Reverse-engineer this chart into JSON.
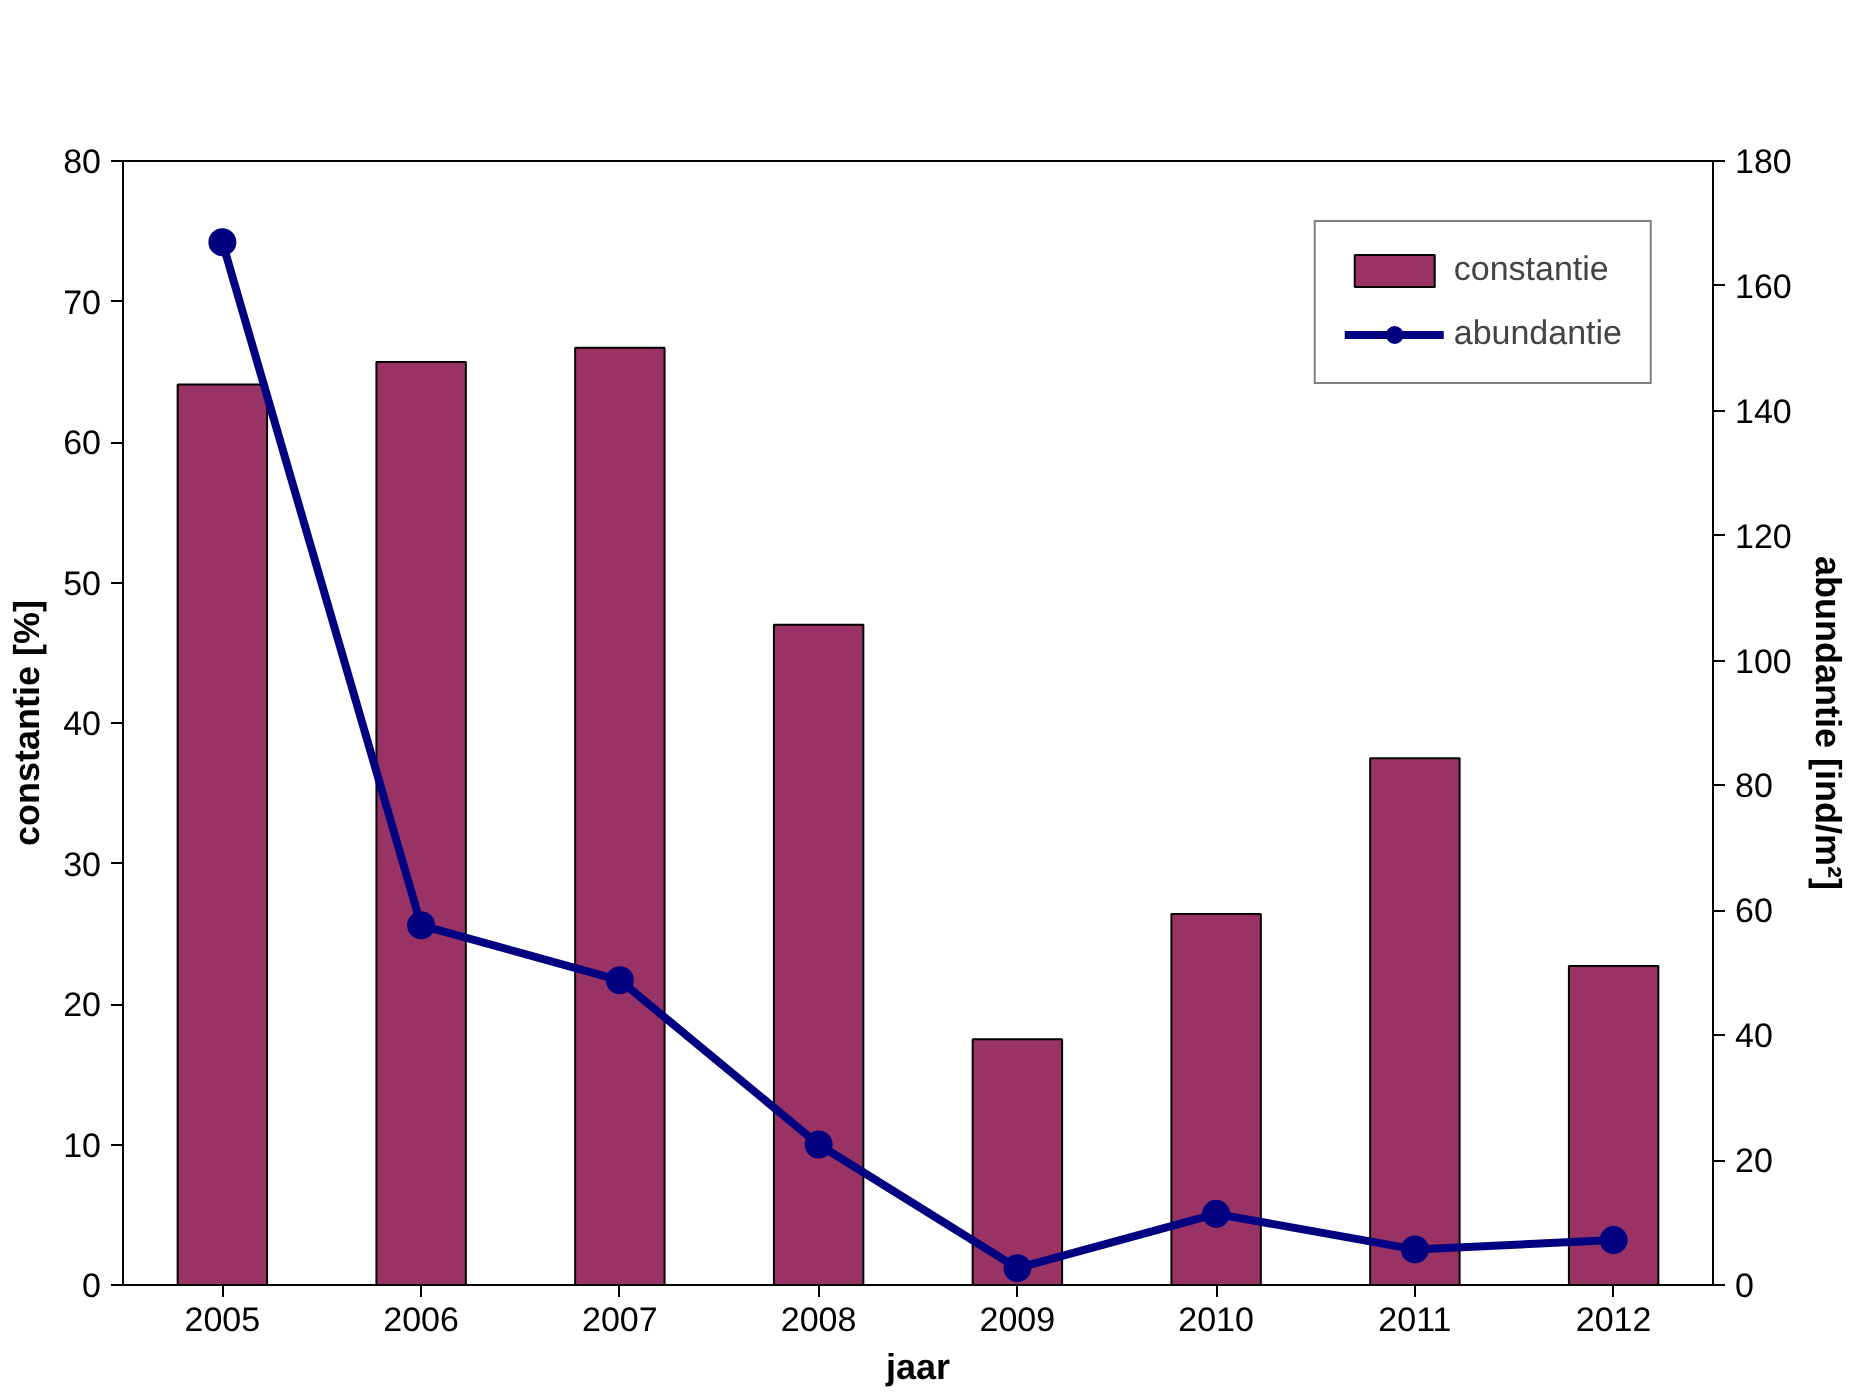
{
  "chart_data": {
    "type": "bar",
    "xlabel": "jaar",
    "ylabel": "constantie [%]",
    "y2label": "abundantie [ind/m²]",
    "categories": [
      "2005",
      "2006",
      "2007",
      "2008",
      "2009",
      "2010",
      "2011",
      "2012"
    ],
    "series": [
      {
        "name": "constantie",
        "color": "#993366",
        "values": [
          64.1,
          65.7,
          66.7,
          47.0,
          17.5,
          26.4,
          37.5,
          22.7
        ]
      },
      {
        "name": "abundantie",
        "type": "line",
        "axis": "y2",
        "color": "#000080",
        "marker": "circle",
        "values": [
          167,
          57.6,
          48.8,
          22.5,
          2.7,
          11.4,
          5.7,
          7.2
        ]
      }
    ],
    "ylim": [
      0,
      80
    ],
    "yticks": [
      0,
      10,
      20,
      30,
      40,
      50,
      60,
      70,
      80
    ],
    "y2lim": [
      0,
      180
    ],
    "y2ticks": [
      0,
      20,
      40,
      60,
      80,
      100,
      120,
      140,
      160,
      180
    ],
    "grid": false,
    "legend": "top right"
  }
}
